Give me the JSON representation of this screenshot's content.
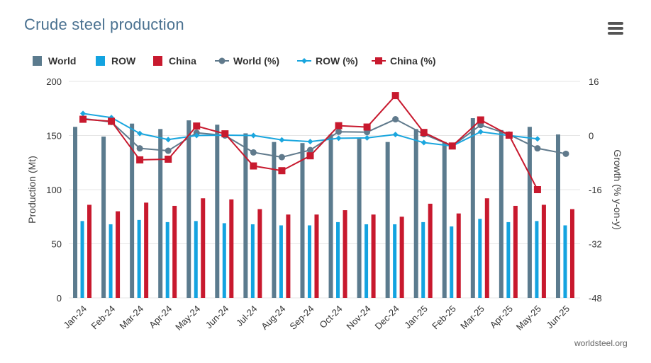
{
  "title": "Crude steel production",
  "menu_icon": "hamburger-menu-icon",
  "source": "worldsteel.org",
  "colors": {
    "world_bar": "#5b7b8e",
    "row_bar": "#13a3e0",
    "china_bar": "#c8192e",
    "world_line": "#607a8c",
    "row_line": "#1aa6de",
    "china_line": "#c8192e",
    "grid": "#e6e6e6",
    "title": "#4a7190"
  },
  "chart_data": {
    "type": "bar",
    "title": "Crude steel production",
    "categories": [
      "Jan-24",
      "Feb-24",
      "Mar-24",
      "Apr-24",
      "May-24",
      "Jun-24",
      "Jul-24",
      "Aug-24",
      "Sep-24",
      "Oct-24",
      "Nov-24",
      "Dec-24",
      "Jan-25",
      "Feb-25",
      "Mar-25",
      "Apr-25",
      "May-25",
      "Jun-25"
    ],
    "ylabel": "Production (Mt)",
    "y2label": "Growth (% y-on-y)",
    "ylim": [
      0,
      200
    ],
    "y2lim": [
      -48,
      16
    ],
    "yticks": [
      0,
      50,
      100,
      150,
      200
    ],
    "y2ticks": [
      -48,
      -32,
      -16,
      0,
      16
    ],
    "grid": true,
    "legend_position": "top",
    "series": [
      {
        "name": "World",
        "kind": "bar",
        "axis": "left",
        "values": [
          158,
          149,
          161,
          156,
          164,
          160,
          152,
          144,
          143,
          151,
          147,
          144,
          156,
          144,
          166,
          155,
          158,
          151
        ]
      },
      {
        "name": "ROW",
        "kind": "bar",
        "axis": "left",
        "values": [
          71,
          68,
          72,
          70,
          71,
          69,
          68,
          67,
          67,
          70,
          68,
          68,
          70,
          66,
          73,
          70,
          71,
          67
        ]
      },
      {
        "name": "China",
        "kind": "bar",
        "axis": "left",
        "values": [
          86,
          80,
          88,
          85,
          92,
          91,
          82,
          77,
          77,
          81,
          77,
          75,
          87,
          78,
          92,
          85,
          86,
          82
        ]
      },
      {
        "name": "World (%)",
        "kind": "line",
        "marker": "circle",
        "axis": "right",
        "values": [
          5,
          4,
          -3.8,
          -4.5,
          0.8,
          0,
          -5,
          -6.4,
          -4.3,
          1.1,
          1,
          4.8,
          0.4,
          -3.1,
          3.1,
          0.3,
          -3.8,
          -5.4
        ]
      },
      {
        "name": "ROW (%)",
        "kind": "line",
        "marker": "diamond",
        "axis": "right",
        "values": [
          6.5,
          5.3,
          0.6,
          -1.2,
          0,
          0.1,
          0,
          -1.3,
          -1.8,
          -0.8,
          -0.7,
          0.3,
          -2.1,
          -3.1,
          1.1,
          0,
          -1,
          null
        ]
      },
      {
        "name": "China (%)",
        "kind": "line",
        "marker": "square",
        "axis": "right",
        "values": [
          4.8,
          4.2,
          -7.2,
          -7,
          2.8,
          0.5,
          -9,
          -10.4,
          -6,
          2.9,
          2.5,
          11.8,
          0.9,
          -3.1,
          4.6,
          0.1,
          -16,
          null
        ]
      }
    ]
  }
}
